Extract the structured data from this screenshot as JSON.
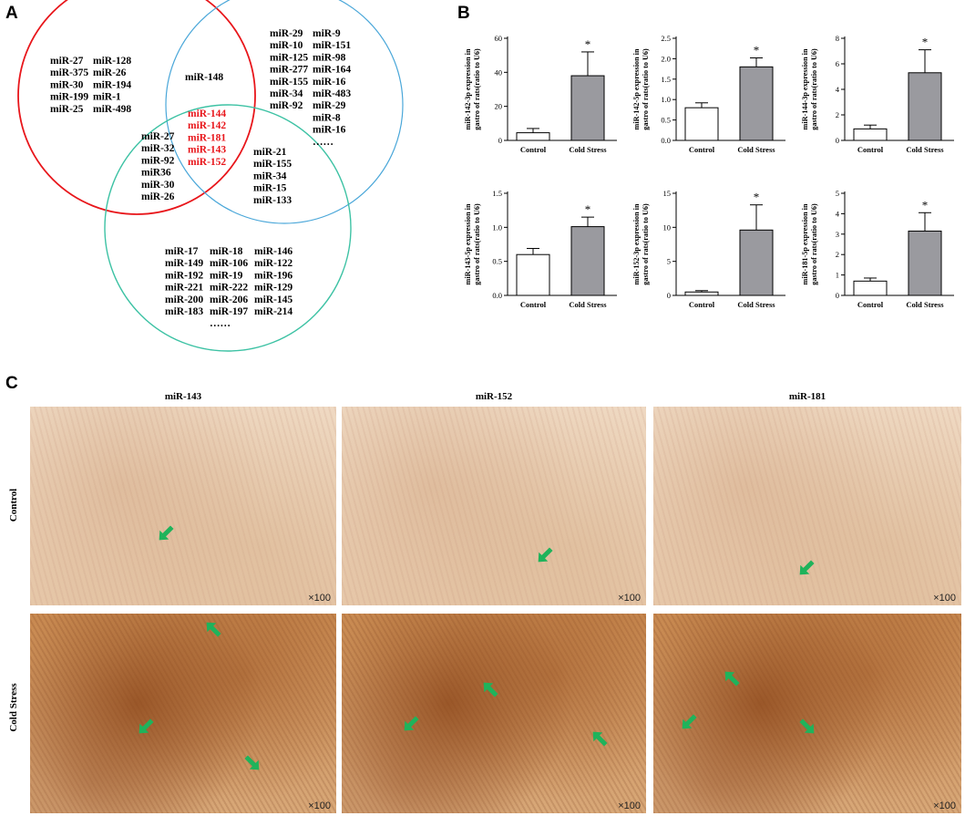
{
  "panel_labels": {
    "a": "A",
    "b": "B",
    "c": "C"
  },
  "venn": {
    "red_only_col1": [
      "miR-27",
      "miR-375",
      "miR-30",
      "miR-199",
      "miR-25"
    ],
    "red_only_col2": [
      "miR-128",
      "miR-26",
      "miR-194",
      "miR-1",
      "miR-498"
    ],
    "red_blue": [
      "miR-148"
    ],
    "blue_only_col1": [
      "miR-29",
      "miR-10",
      "miR-125",
      "miR-277",
      "miR-155",
      "miR-34",
      "miR-92"
    ],
    "blue_only_col2": [
      "miR-9",
      "miR-151",
      "miR-98",
      "miR-164",
      "miR-16",
      "miR-483",
      "miR-29",
      "miR-8",
      "miR-16",
      "……"
    ],
    "all_three": [
      "miR-144",
      "miR-142",
      "miR-181",
      "miR-143",
      "miR-152"
    ],
    "red_green": [
      "miR-27",
      "miR-32",
      "miR-92",
      "miR36",
      "miR-30",
      "miR-26"
    ],
    "blue_green": [
      "miR-21",
      "miR-155",
      "miR-34",
      "miR-15",
      "miR-133"
    ],
    "green_only_col1": [
      "miR-17",
      "miR-149",
      "miR-192",
      "miR-221",
      "miR-200",
      "miR-183"
    ],
    "green_only_col2": [
      "miR-18",
      "miR-106",
      "miR-19",
      "miR-222",
      "miR-206",
      "miR-197",
      "……"
    ],
    "green_only_col3": [
      "miR-146",
      "miR-122",
      "miR-196",
      "miR-129",
      "miR-145",
      "miR-214"
    ],
    "colors": {
      "red": "#e8161b",
      "blue": "#4aa7d9",
      "green": "#3dc2a4"
    }
  },
  "chart_data": [
    {
      "type": "bar",
      "ylabel": "miR-142-3p expression in gastro of rats(ratio to U6)",
      "categories": [
        "Control",
        "Cold Stress"
      ],
      "values": [
        4.5,
        38
      ],
      "errors": [
        2.5,
        14
      ],
      "ylim": [
        0,
        60
      ],
      "yticks": [
        0,
        20,
        40,
        60
      ],
      "tick_labels": [
        "0",
        "20",
        "40",
        "60"
      ],
      "significance": "*"
    },
    {
      "type": "bar",
      "ylabel": "miR-142-5p expression in gastro of rats(ratio to U6)",
      "categories": [
        "Control",
        "Cold Stress"
      ],
      "values": [
        0.8,
        1.8
      ],
      "errors": [
        0.12,
        0.22
      ],
      "ylim": [
        0,
        2.5
      ],
      "yticks": [
        0,
        0.5,
        1.0,
        1.5,
        2.0,
        2.5
      ],
      "tick_labels": [
        "0.0",
        "0.5",
        "1.0",
        "1.5",
        "2.0",
        "2.5"
      ],
      "significance": "*"
    },
    {
      "type": "bar",
      "ylabel": "miR-144-3p expression in gastro of rats(ratio to U6)",
      "categories": [
        "Control",
        "Cold Stress"
      ],
      "values": [
        0.9,
        5.3
      ],
      "errors": [
        0.3,
        1.8
      ],
      "ylim": [
        0,
        8
      ],
      "yticks": [
        0,
        2,
        4,
        6,
        8
      ],
      "tick_labels": [
        "0",
        "2",
        "4",
        "6",
        "8"
      ],
      "significance": "*"
    },
    {
      "type": "bar",
      "ylabel": "miR-143-5p expression in gastro of rats(ratio to U6)",
      "categories": [
        "Control",
        "Cold Stress"
      ],
      "values": [
        0.6,
        1.01
      ],
      "errors": [
        0.09,
        0.14
      ],
      "ylim": [
        0,
        1.5
      ],
      "yticks": [
        0,
        0.5,
        1.0,
        1.5
      ],
      "tick_labels": [
        "0.0",
        "0.5",
        "1.0",
        "1.5"
      ],
      "significance": "*"
    },
    {
      "type": "bar",
      "ylabel": "miR-152-3p expression in gastro of rats(ratio to U6)",
      "categories": [
        "Control",
        "Cold Stress"
      ],
      "values": [
        0.5,
        9.6
      ],
      "errors": [
        0.2,
        3.7
      ],
      "ylim": [
        0,
        15
      ],
      "yticks": [
        0,
        5,
        10,
        15
      ],
      "tick_labels": [
        "0",
        "5",
        "10",
        "15"
      ],
      "significance": "*"
    },
    {
      "type": "bar",
      "ylabel": "miR-181-5p expression in gastro of rats(ratio to U6)",
      "categories": [
        "Control",
        "Cold Stress"
      ],
      "values": [
        0.7,
        3.15
      ],
      "errors": [
        0.15,
        0.9
      ],
      "ylim": [
        0,
        5
      ],
      "yticks": [
        0,
        1,
        2,
        3,
        4,
        5
      ],
      "tick_labels": [
        "0",
        "1",
        "2",
        "3",
        "4",
        "5"
      ],
      "significance": "*"
    }
  ],
  "micrographs": {
    "columns": [
      "miR-143",
      "miR-152",
      "miR-181"
    ],
    "rows": [
      "Control",
      "Cold Stress"
    ],
    "magnification": "×100",
    "arrow_color": "#1fb35b"
  }
}
